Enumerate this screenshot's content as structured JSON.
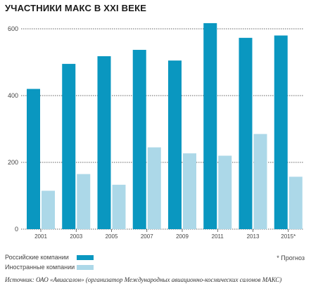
{
  "title": "УЧАСТНИКИ МАКС В XXI ВЕКЕ",
  "chart_data": {
    "type": "bar",
    "title": "УЧАСТНИКИ МАКС В XXI ВЕКЕ",
    "categories": [
      "2001",
      "2003",
      "2005",
      "2007",
      "2009",
      "2011",
      "2013",
      "2015*"
    ],
    "ylim": [
      0,
      640
    ],
    "yticks": [
      0,
      200,
      400,
      600
    ],
    "grid": true,
    "legend_position": "bottom-left",
    "series": [
      {
        "name": "Российские компании",
        "color": "#0a97c0",
        "values": [
          420,
          495,
          518,
          537,
          505,
          617,
          573,
          580
        ]
      },
      {
        "name": "Иностранные компании",
        "color": "#acd8e8",
        "values": [
          115,
          165,
          133,
          245,
          227,
          220,
          285,
          157
        ]
      }
    ]
  },
  "note": "* Прогноз",
  "source": "Источник: ОАО «Авиасалон» (организатор Международных авиационно-космических салонов МАКС)"
}
